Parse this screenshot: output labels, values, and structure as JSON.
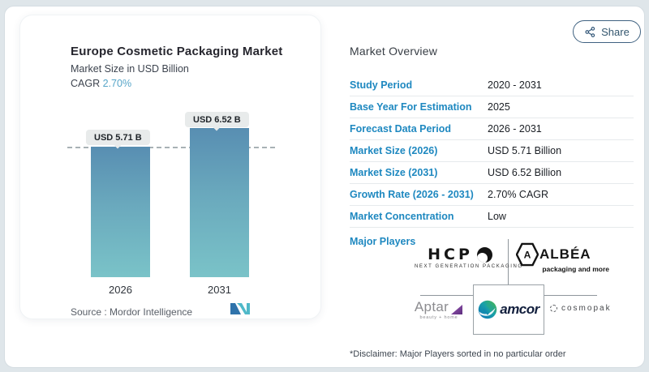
{
  "share": {
    "label": "Share"
  },
  "left_card": {
    "title": "Europe Cosmetic Packaging Market",
    "subtitle": "Market Size in USD Billion",
    "cagr_label": "CAGR",
    "cagr_value": "2.70%",
    "source": "Source :  Mordor Intelligence"
  },
  "chart_data": {
    "type": "bar",
    "title": "Europe Cosmetic Packaging Market",
    "subtitle": "Market Size in USD Billion",
    "cagr": "2.70%",
    "categories": [
      "2026",
      "2031"
    ],
    "values": [
      5.71,
      6.52
    ],
    "unit": "USD Billion",
    "bar_labels": [
      "USD 5.71 B",
      "USD 6.52 B"
    ],
    "reference_line": 5.71,
    "ylim": [
      0,
      6.52
    ],
    "grid": false,
    "bar_gradient_top": "#588eb2",
    "bar_gradient_bottom": "#7ac3c8",
    "source": "Source :  Mordor Intelligence"
  },
  "overview": {
    "heading": "Market Overview",
    "label_color": "#1e88c0",
    "rows": [
      {
        "label": "Study Period",
        "value": "2020 - 2031"
      },
      {
        "label": "Base Year For Estimation",
        "value": "2025"
      },
      {
        "label": "Forecast Data Period",
        "value": "2026 - 2031"
      },
      {
        "label": "Market Size (2026)",
        "value": "USD 5.71 Billion"
      },
      {
        "label": "Market Size (2031)",
        "value": "USD 6.52 Billion"
      },
      {
        "label": "Growth Rate (2026 - 2031)",
        "value": "2.70% CAGR"
      },
      {
        "label": "Market Concentration",
        "value": "Low"
      }
    ],
    "major_players_label": "Major Players",
    "disclaimer": "*Disclaimer: Major Players sorted in no particular order"
  },
  "players": {
    "hcp": {
      "name": "HCP",
      "tagline": "NEXT GENERATION PACKAGING"
    },
    "albea": {
      "name": "ALBÉA",
      "tagline": "packaging and more"
    },
    "aptar": {
      "name": "Aptar",
      "tagline": "beauty + home"
    },
    "amcor": {
      "name": "amcor"
    },
    "cosmopak": {
      "name": "cosmopak"
    }
  }
}
